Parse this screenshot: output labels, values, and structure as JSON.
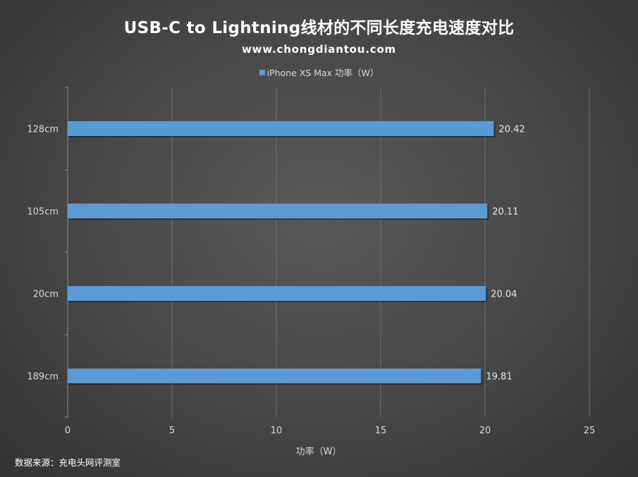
{
  "chart_data": {
    "type": "bar",
    "orientation": "horizontal",
    "title": "USB-C to Lightning线材的不同长度充电速度对比",
    "subtitle": "www.chongdiantou.com",
    "categories": [
      "128cm",
      "105cm",
      "20cm",
      "189cm"
    ],
    "series": [
      {
        "name": "iPhone XS Max 功率（W）",
        "values": [
          20.42,
          20.11,
          20.04,
          19.81
        ]
      }
    ],
    "data_labels": [
      "20.42",
      "20.11",
      "20.04",
      "19.81"
    ],
    "xlabel": "功率（W）",
    "ylabel": "",
    "xlim": [
      0,
      25
    ],
    "xticks": [
      0,
      5,
      10,
      15,
      20,
      25
    ],
    "grid": true,
    "legend": "top",
    "bar_color": "#5b9bd5"
  },
  "source_note": "数据来源：充电头网评测室"
}
